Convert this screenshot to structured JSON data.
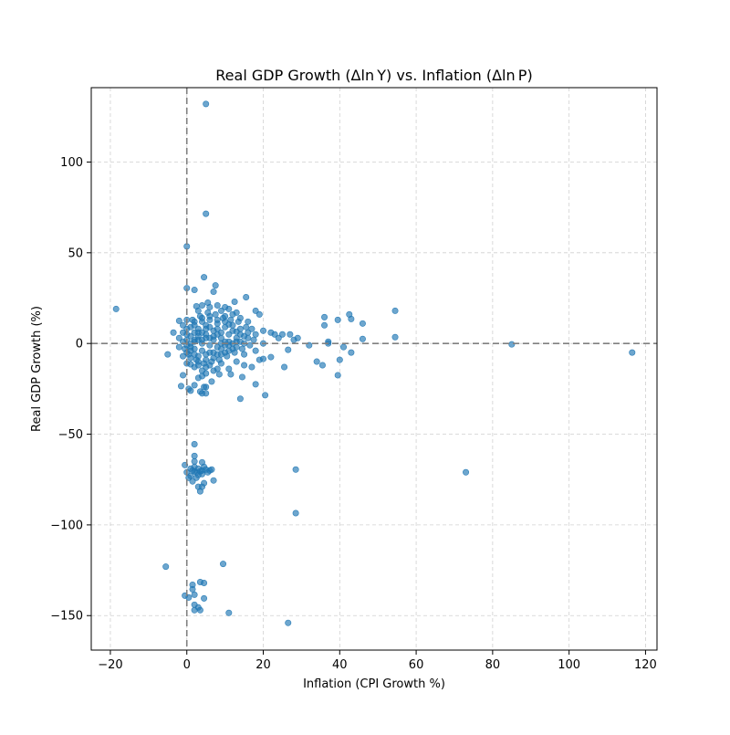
{
  "chart_data": {
    "type": "scatter",
    "title": "Real GDP Growth (Δln Y) vs. Inflation (Δln P)",
    "xlabel": "Inflation (CPI Growth %)",
    "ylabel": "Real GDP Growth (%)",
    "xlim": [
      -25,
      123
    ],
    "ylim": [
      -169,
      141
    ],
    "xticks": [
      -20,
      0,
      20,
      40,
      60,
      80,
      100,
      120
    ],
    "yticks": [
      -150,
      -100,
      -50,
      0,
      50,
      100
    ],
    "xtick_labels": [
      "−20",
      "0",
      "20",
      "40",
      "60",
      "80",
      "100",
      "120"
    ],
    "ytick_labels": [
      "−150",
      "−100",
      "−50",
      "0",
      "50",
      "100"
    ],
    "grid": true,
    "reference_lines": {
      "x": 0,
      "y": 0,
      "style": "dashed"
    },
    "marker_color": "#1f77b4",
    "marker_alpha": 0.65,
    "points": [
      [
        5,
        132
      ],
      [
        5,
        71.5
      ],
      [
        0,
        53.5
      ],
      [
        0,
        30.5
      ],
      [
        2,
        29.5
      ],
      [
        4.5,
        36.5
      ],
      [
        7.5,
        32
      ],
      [
        7,
        28.5
      ],
      [
        15.5,
        25.5
      ],
      [
        12.5,
        23
      ],
      [
        18,
        18
      ],
      [
        19,
        16
      ],
      [
        22,
        6
      ],
      [
        23,
        5
      ],
      [
        25,
        5
      ],
      [
        27,
        5
      ],
      [
        24,
        3
      ],
      [
        28,
        2
      ],
      [
        29,
        3
      ],
      [
        32,
        -1
      ],
      [
        34,
        -10
      ],
      [
        35.5,
        -12
      ],
      [
        36,
        14.5
      ],
      [
        36,
        10
      ],
      [
        37,
        1
      ],
      [
        37,
        0
      ],
      [
        39.5,
        13
      ],
      [
        40,
        -9
      ],
      [
        39.5,
        -17.5
      ],
      [
        41,
        -2
      ],
      [
        42.5,
        16
      ],
      [
        43,
        13.5
      ],
      [
        43,
        -5
      ],
      [
        46,
        11
      ],
      [
        46,
        2.5
      ],
      [
        54.5,
        18
      ],
      [
        54.5,
        3.5
      ],
      [
        85,
        -0.5
      ],
      [
        116.5,
        -5
      ],
      [
        73,
        -71
      ],
      [
        -18.5,
        19
      ],
      [
        -5,
        -6
      ],
      [
        -5.5,
        -123
      ],
      [
        26.5,
        -154
      ],
      [
        28.5,
        -69.5
      ],
      [
        28.5,
        -93.5
      ],
      [
        9.5,
        -121.5
      ],
      [
        11,
        -148.5
      ],
      [
        4.5,
        -132
      ],
      [
        3.5,
        -131.5
      ],
      [
        1.5,
        -135.5
      ],
      [
        1.5,
        -133
      ],
      [
        0.5,
        -140
      ],
      [
        -0.5,
        -139
      ],
      [
        2,
        -138.5
      ],
      [
        4.5,
        -140.5
      ],
      [
        2,
        -144
      ],
      [
        3,
        -145.5
      ],
      [
        2,
        -147
      ],
      [
        3.5,
        -147
      ],
      [
        2,
        -55.5
      ],
      [
        2,
        -62
      ],
      [
        -0.5,
        -67
      ],
      [
        0,
        -71
      ],
      [
        1,
        -69
      ],
      [
        1.5,
        -70
      ],
      [
        2,
        -68
      ],
      [
        2.5,
        -71
      ],
      [
        3,
        -69
      ],
      [
        3.5,
        -70.5
      ],
      [
        4,
        -72
      ],
      [
        4.5,
        -68
      ],
      [
        5,
        -69.5
      ],
      [
        5.5,
        -71
      ],
      [
        6,
        -70
      ],
      [
        4,
        -65.5
      ],
      [
        2,
        -65
      ],
      [
        1,
        -73
      ],
      [
        0.5,
        -74
      ],
      [
        2.5,
        -74
      ],
      [
        3,
        -79
      ],
      [
        3.5,
        -81.5
      ],
      [
        4,
        -79
      ],
      [
        4.5,
        -77
      ],
      [
        1.5,
        -76
      ],
      [
        7,
        -75.5
      ],
      [
        3,
        -72.5
      ],
      [
        4,
        -70
      ],
      [
        2,
        -70.5
      ],
      [
        6.5,
        -69.5
      ],
      [
        -1,
        -17.5
      ],
      [
        -1.5,
        -23.5
      ],
      [
        0.5,
        -25
      ],
      [
        1,
        -26
      ],
      [
        3.5,
        -26.5
      ],
      [
        4,
        -27.5
      ],
      [
        5,
        -27.5
      ],
      [
        2,
        -23
      ],
      [
        4.5,
        -24
      ],
      [
        5,
        -24
      ],
      [
        3,
        -19
      ],
      [
        4,
        -18
      ],
      [
        5,
        -16.5
      ],
      [
        6.5,
        -21
      ],
      [
        8.5,
        -17
      ],
      [
        11.5,
        -17
      ],
      [
        14.5,
        -18.5
      ],
      [
        14,
        -30.5
      ],
      [
        18,
        -22.5
      ],
      [
        20.5,
        -28.5
      ],
      [
        20,
        -8.5
      ],
      [
        22,
        -7.5
      ],
      [
        25.5,
        -13
      ],
      [
        26.5,
        -3.5
      ],
      [
        -3.5,
        6
      ],
      [
        -2,
        12.5
      ],
      [
        -1,
        10
      ],
      [
        0,
        13
      ],
      [
        12,
        16
      ],
      [
        10,
        15
      ],
      [
        9,
        18
      ],
      [
        11,
        19
      ],
      [
        13,
        17
      ],
      [
        14,
        14
      ],
      [
        16,
        12
      ],
      [
        17,
        8
      ],
      [
        18,
        5
      ],
      [
        20,
        7
      ],
      [
        20,
        0
      ],
      [
        18,
        -4
      ],
      [
        19,
        -9
      ],
      [
        17,
        -13
      ],
      [
        15,
        -12
      ],
      [
        13,
        -10
      ],
      [
        11,
        -14
      ],
      [
        8,
        -14
      ],
      [
        6,
        -12
      ],
      [
        4,
        -15
      ],
      [
        2,
        -13
      ],
      [
        0,
        -11
      ],
      [
        -1,
        -7
      ],
      [
        -2,
        -2
      ],
      [
        -2,
        3
      ],
      [
        -1,
        6
      ],
      [
        0,
        8
      ],
      [
        2,
        10
      ],
      [
        4,
        12
      ],
      [
        6,
        13
      ],
      [
        8,
        11
      ],
      [
        10,
        9
      ],
      [
        12,
        7
      ],
      [
        14,
        5
      ],
      [
        16,
        3
      ],
      [
        15,
        0
      ],
      [
        13,
        -2
      ],
      [
        11,
        -4
      ],
      [
        9,
        -6
      ],
      [
        7,
        -8
      ],
      [
        5,
        -9
      ],
      [
        3,
        -10
      ],
      [
        1,
        -8
      ],
      [
        0,
        -5
      ],
      [
        1,
        -2
      ],
      [
        2,
        1
      ],
      [
        3,
        4
      ],
      [
        4,
        6
      ],
      [
        5,
        8
      ],
      [
        6,
        9
      ],
      [
        7,
        7
      ],
      [
        8,
        5
      ],
      [
        9,
        3
      ],
      [
        10,
        1
      ],
      [
        11,
        -1
      ],
      [
        12,
        -3
      ],
      [
        10,
        -5
      ],
      [
        8,
        -6
      ],
      [
        6,
        -5
      ],
      [
        4,
        -4
      ],
      [
        2,
        -3
      ],
      [
        1,
        0
      ],
      [
        3,
        2
      ],
      [
        5,
        3
      ],
      [
        7,
        4
      ],
      [
        9,
        6
      ],
      [
        11,
        5
      ],
      [
        13,
        3
      ],
      [
        14,
        1
      ],
      [
        12,
        0
      ],
      [
        10,
        -1
      ],
      [
        8,
        -2
      ],
      [
        6,
        -1
      ],
      [
        4,
        0
      ],
      [
        2,
        2
      ],
      [
        3,
        6
      ],
      [
        5,
        5
      ],
      [
        7,
        2
      ],
      [
        9,
        0
      ],
      [
        6,
        3
      ],
      [
        4,
        2
      ],
      [
        8,
        8
      ],
      [
        5,
        10
      ],
      [
        3,
        8
      ],
      [
        2,
        6
      ],
      [
        1,
        4
      ],
      [
        0,
        2
      ],
      [
        0,
        -1
      ],
      [
        1,
        -4
      ],
      [
        2,
        -6
      ],
      [
        3,
        -7
      ],
      [
        5,
        -6
      ],
      [
        7,
        -5
      ],
      [
        9,
        -3
      ],
      [
        11,
        1
      ],
      [
        13,
        1
      ],
      [
        15,
        4
      ],
      [
        16,
        6
      ],
      [
        14,
        8
      ],
      [
        12,
        10
      ],
      [
        10,
        12
      ],
      [
        8,
        13
      ],
      [
        6,
        15
      ],
      [
        4,
        14
      ],
      [
        2,
        12
      ],
      [
        1,
        9
      ],
      [
        0,
        5
      ],
      [
        -1,
        1
      ],
      [
        -0.5,
        -3
      ],
      [
        0.5,
        -6
      ],
      [
        2.5,
        -9
      ],
      [
        4.5,
        -11
      ],
      [
        6.5,
        -10
      ],
      [
        8.5,
        -9
      ],
      [
        10.5,
        -7
      ],
      [
        12.5,
        -5
      ],
      [
        14.5,
        -3
      ],
      [
        16.5,
        -1
      ],
      [
        17.5,
        2
      ],
      [
        15.5,
        9
      ],
      [
        13.5,
        12
      ],
      [
        11.5,
        13
      ],
      [
        9.5,
        14
      ],
      [
        7.5,
        16
      ],
      [
        5.5,
        17
      ],
      [
        3.5,
        15
      ],
      [
        1.5,
        13
      ],
      [
        4,
        21
      ],
      [
        6,
        20
      ],
      [
        8,
        21
      ],
      [
        10,
        20
      ],
      [
        3,
        18
      ],
      [
        5.5,
        22.5
      ],
      [
        2.5,
        20.5
      ],
      [
        11,
        10.5
      ],
      [
        13,
        6.5
      ],
      [
        15,
        -6
      ],
      [
        7,
        -15
      ],
      [
        9,
        -11
      ],
      [
        5,
        -13
      ],
      [
        3,
        -12
      ],
      [
        1,
        -11.5
      ]
    ]
  }
}
